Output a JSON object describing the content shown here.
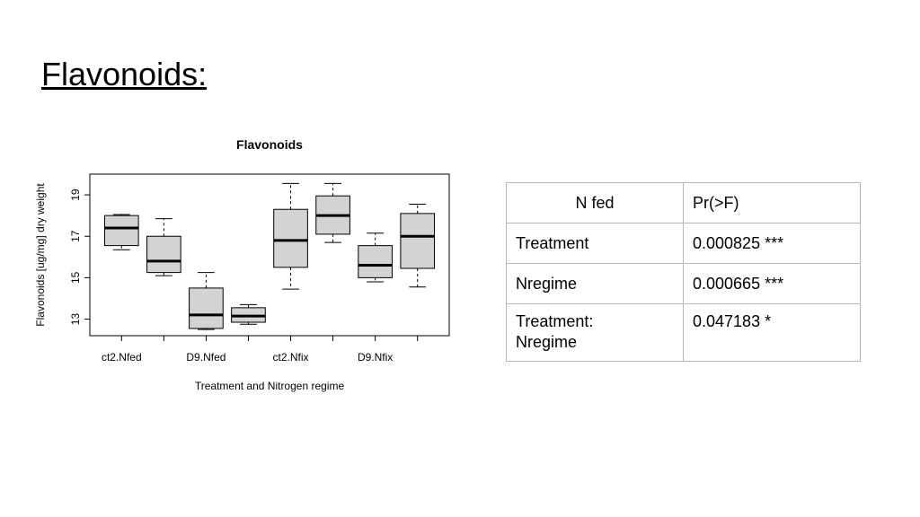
{
  "slide": {
    "title": "Flavonoids:"
  },
  "chart_data": {
    "type": "box",
    "title": "Flavonoids",
    "xlabel": "Treatment and Nitrogen regime",
    "ylabel": "Flavonoids [ug/mg] dry weight",
    "ylim": [
      12.2,
      20.0
    ],
    "yticks": [
      13,
      15,
      17,
      19
    ],
    "xtick_labels": [
      "ct2.Nfed",
      "D9.Nfed",
      "ct2.Nfix",
      "D9.Nfix"
    ],
    "grid": false,
    "boxes": [
      {
        "min": 16.35,
        "q1": 16.55,
        "median": 17.4,
        "q3": 18.0,
        "max": 18.05
      },
      {
        "min": 15.1,
        "q1": 15.25,
        "median": 15.8,
        "q3": 17.0,
        "max": 17.85
      },
      {
        "min": 12.5,
        "q1": 12.55,
        "median": 13.2,
        "q3": 14.5,
        "max": 15.25
      },
      {
        "min": 12.75,
        "q1": 12.85,
        "median": 13.15,
        "q3": 13.55,
        "max": 13.7
      },
      {
        "min": 14.45,
        "q1": 15.5,
        "median": 16.8,
        "q3": 18.3,
        "max": 19.55
      },
      {
        "min": 16.7,
        "q1": 17.1,
        "median": 18.0,
        "q3": 18.95,
        "max": 19.55
      },
      {
        "min": 14.8,
        "q1": 15.0,
        "median": 15.6,
        "q3": 16.55,
        "max": 17.15
      },
      {
        "min": 14.55,
        "q1": 15.45,
        "median": 17.0,
        "q3": 18.1,
        "max": 18.55
      }
    ],
    "box_fill": "#d3d3d3"
  },
  "table": {
    "header": [
      "N fed",
      "Pr(>F)"
    ],
    "rows": [
      [
        "Treatment",
        "0.000825 ***"
      ],
      [
        "Nregime",
        "0.000665 ***"
      ],
      [
        "Treatment:",
        "0.047183 *"
      ]
    ],
    "last_row_cont": "Nregime"
  }
}
